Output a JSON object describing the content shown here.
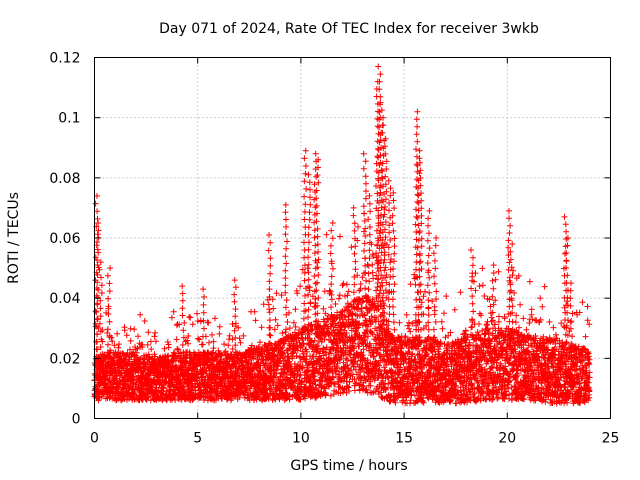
{
  "chart_data": {
    "type": "scatter",
    "title": "Day 071 of 2024, Rate Of TEC Index for receiver 3wkb",
    "xlabel": "GPS time / hours",
    "ylabel": "ROTI / TECUs",
    "xlim": [
      0,
      25
    ],
    "ylim": [
      0,
      0.12
    ],
    "x_ticks": [
      0,
      5,
      10,
      15,
      20,
      25
    ],
    "x_tick_labels": [
      "0",
      "5",
      "10",
      "15",
      "20",
      "25"
    ],
    "y_ticks": [
      0,
      0.02,
      0.04,
      0.06,
      0.08,
      0.1,
      0.12
    ],
    "y_tick_labels": [
      "0",
      "0.02",
      "0.04",
      "0.06",
      "0.08",
      "0.1",
      "0.12"
    ],
    "grid": true,
    "marker": "plus",
    "color": "#ff0000",
    "series": [
      {
        "name": "ROTI",
        "envelope": {
          "hours": [
            0,
            0.5,
            1,
            2,
            3,
            4,
            5,
            6,
            7,
            8,
            9,
            10,
            11,
            12,
            12.5,
            13,
            13.5,
            14,
            14.5,
            15,
            15.5,
            16,
            16.5,
            17,
            18,
            19,
            20,
            21,
            22,
            23,
            24
          ],
          "base": [
            0.013,
            0.014,
            0.014,
            0.014,
            0.013,
            0.014,
            0.014,
            0.014,
            0.014,
            0.015,
            0.016,
            0.018,
            0.02,
            0.022,
            0.024,
            0.025,
            0.024,
            0.02,
            0.016,
            0.016,
            0.016,
            0.016,
            0.016,
            0.015,
            0.016,
            0.018,
            0.018,
            0.017,
            0.016,
            0.015,
            0.014
          ],
          "spread": [
            0.007,
            0.008,
            0.008,
            0.008,
            0.007,
            0.008,
            0.008,
            0.008,
            0.008,
            0.009,
            0.01,
            0.012,
            0.013,
            0.014,
            0.015,
            0.016,
            0.016,
            0.014,
            0.011,
            0.011,
            0.011,
            0.011,
            0.011,
            0.01,
            0.011,
            0.012,
            0.012,
            0.011,
            0.011,
            0.01,
            0.009
          ]
        },
        "peaks": [
          {
            "x": 0.1,
            "y": 0.074
          },
          {
            "x": 0.15,
            "y": 0.065
          },
          {
            "x": 0.3,
            "y": 0.052
          },
          {
            "x": 0.7,
            "y": 0.05
          },
          {
            "x": 4.3,
            "y": 0.044
          },
          {
            "x": 5.3,
            "y": 0.043
          },
          {
            "x": 6.8,
            "y": 0.046
          },
          {
            "x": 8.5,
            "y": 0.061
          },
          {
            "x": 9.3,
            "y": 0.071
          },
          {
            "x": 10.2,
            "y": 0.089
          },
          {
            "x": 10.4,
            "y": 0.081
          },
          {
            "x": 10.7,
            "y": 0.088
          },
          {
            "x": 10.8,
            "y": 0.086
          },
          {
            "x": 11.5,
            "y": 0.065
          },
          {
            "x": 12.6,
            "y": 0.07
          },
          {
            "x": 13.1,
            "y": 0.088
          },
          {
            "x": 13.3,
            "y": 0.074
          },
          {
            "x": 13.7,
            "y": 0.112
          },
          {
            "x": 13.8,
            "y": 0.117
          },
          {
            "x": 13.9,
            "y": 0.105
          },
          {
            "x": 14.0,
            "y": 0.1
          },
          {
            "x": 14.1,
            "y": 0.093
          },
          {
            "x": 14.3,
            "y": 0.079
          },
          {
            "x": 14.5,
            "y": 0.075
          },
          {
            "x": 15.6,
            "y": 0.102
          },
          {
            "x": 15.7,
            "y": 0.089
          },
          {
            "x": 15.8,
            "y": 0.085
          },
          {
            "x": 16.2,
            "y": 0.069
          },
          {
            "x": 16.5,
            "y": 0.06
          },
          {
            "x": 18.3,
            "y": 0.056
          },
          {
            "x": 19.3,
            "y": 0.051
          },
          {
            "x": 20.1,
            "y": 0.069
          },
          {
            "x": 20.2,
            "y": 0.058
          },
          {
            "x": 22.8,
            "y": 0.067
          },
          {
            "x": 22.9,
            "y": 0.06
          },
          {
            "x": 23.1,
            "y": 0.045
          }
        ]
      }
    ]
  }
}
